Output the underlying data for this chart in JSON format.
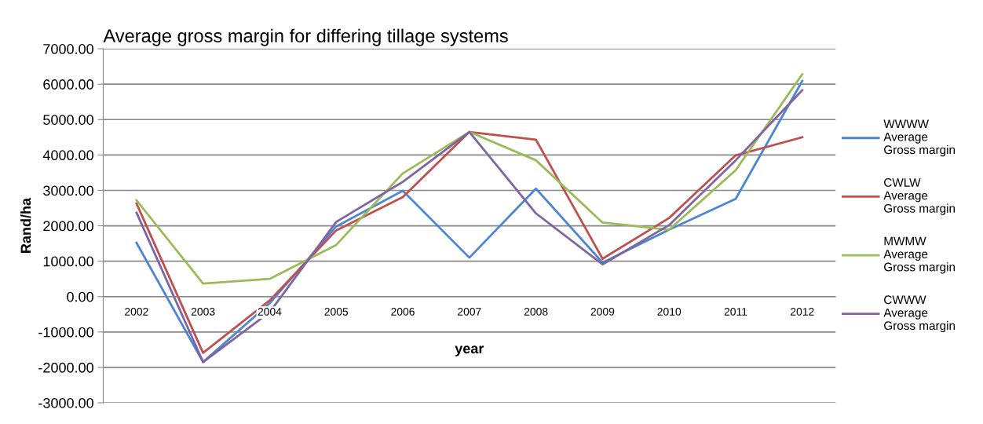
{
  "chart_data": {
    "type": "line",
    "title": "Average gross margin for differing tillage systems",
    "xlabel": "year",
    "ylabel": "Rand/ha",
    "categories": [
      "2002",
      "2003",
      "2004",
      "2005",
      "2006",
      "2007",
      "2008",
      "2009",
      "2010",
      "2011",
      "2012"
    ],
    "series": [
      {
        "name": "WWWW\nAverage\nGross margin",
        "color": "#4a86d4",
        "values": [
          1520,
          -1850,
          -190,
          1980,
          2990,
          1100,
          3050,
          960,
          1890,
          2760,
          6090
        ]
      },
      {
        "name": "CWLW\nAverage\nGross margin",
        "color": "#c0504d",
        "values": [
          2630,
          -1590,
          -110,
          1870,
          2810,
          4650,
          4430,
          1070,
          2220,
          3990,
          4500
        ]
      },
      {
        "name": "MWMW\nAverage\nGross margin",
        "color": "#9bbb59",
        "values": [
          2720,
          370,
          500,
          1460,
          3480,
          4650,
          3850,
          2090,
          1890,
          3570,
          6280
        ]
      },
      {
        "name": "CWWW\nAverage\nGross margin",
        "color": "#8064a2",
        "values": [
          2370,
          -1850,
          -440,
          2110,
          3240,
          4650,
          2350,
          910,
          2020,
          3850,
          5830
        ]
      }
    ],
    "ylim": [
      -3000,
      7000
    ],
    "yticks": [
      {
        "value": -3000,
        "label": "-3000.00"
      },
      {
        "value": -2000,
        "label": "-2000.00"
      },
      {
        "value": -1000,
        "label": "-1000.00"
      },
      {
        "value": 0,
        "label": "0.00"
      },
      {
        "value": 1000,
        "label": "1000.00"
      },
      {
        "value": 2000,
        "label": "2000.00"
      },
      {
        "value": 3000,
        "label": "3000.00"
      },
      {
        "value": 4000,
        "label": "4000.00"
      },
      {
        "value": 5000,
        "label": "5000.00"
      },
      {
        "value": 6000,
        "label": "6000.00"
      },
      {
        "value": 7000,
        "label": "7000.00"
      }
    ],
    "grid": "y",
    "legend": "right",
    "marker": "none",
    "line_style": "solid"
  }
}
